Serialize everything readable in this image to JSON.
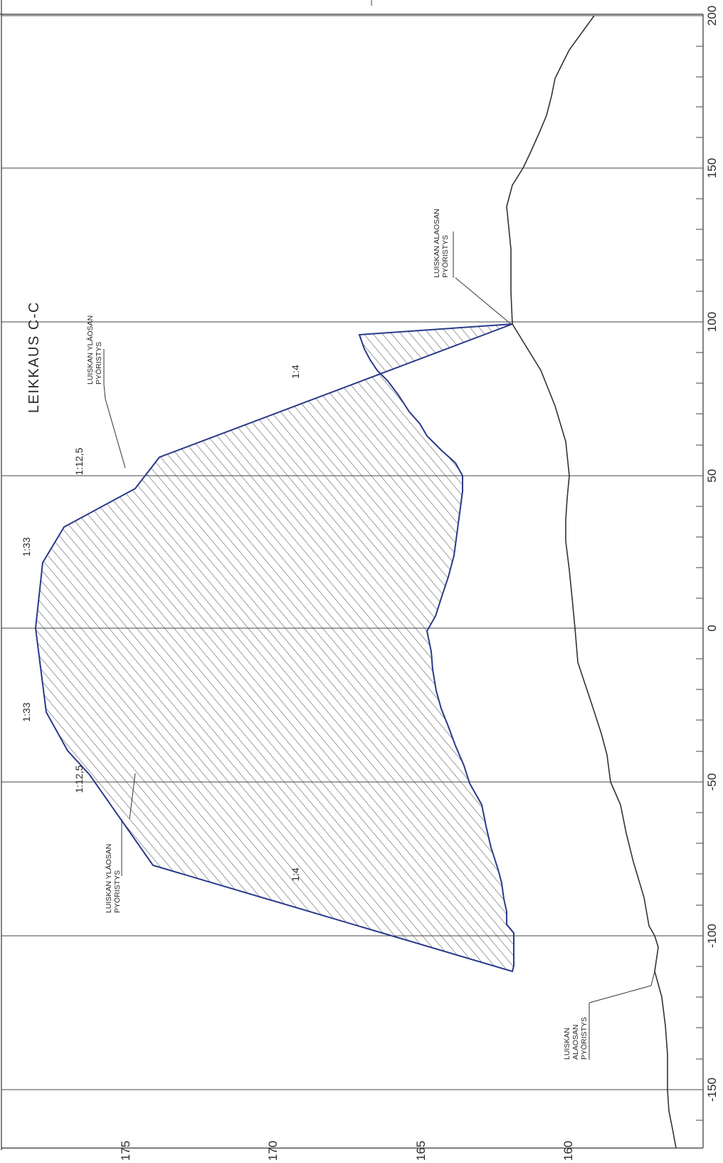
{
  "section_title": "LEIKKAUS C-C",
  "x_axis": {
    "ticks": [
      "200",
      "150",
      "100",
      "50",
      "0",
      "-50",
      "-100",
      "-150"
    ]
  },
  "y_axis": {
    "ticks": [
      "175",
      "170",
      "165",
      "160"
    ]
  },
  "annotations": {
    "slope_left_lower": "1:4",
    "slope_left_upper": "1:12,5",
    "crest_left": "1:33",
    "crest_right": "1:33",
    "slope_right_upper": "1:12,5",
    "slope_right_lower": "1:4",
    "top_rounding_right_l1": "LUISKAN YLÄOSAN",
    "top_rounding_right_l2": "PYÖRISTYS",
    "top_rounding_left_l1": "LUISKAN YLÄOSAN",
    "top_rounding_left_l2": "PYÖRISTYS",
    "bottom_rounding_right_l1": "LUISKAN ALAOSAN",
    "bottom_rounding_right_l2": "PYÖRISTYS",
    "bottom_rounding_left_l1": "LUISKAN",
    "bottom_rounding_left_l2": "ALAOSAN",
    "bottom_rounding_left_l3": "PYÖRISTYS"
  },
  "colors": {
    "outline": "#2a3a8a",
    "lines": "#333333",
    "hatch": "#444444"
  }
}
